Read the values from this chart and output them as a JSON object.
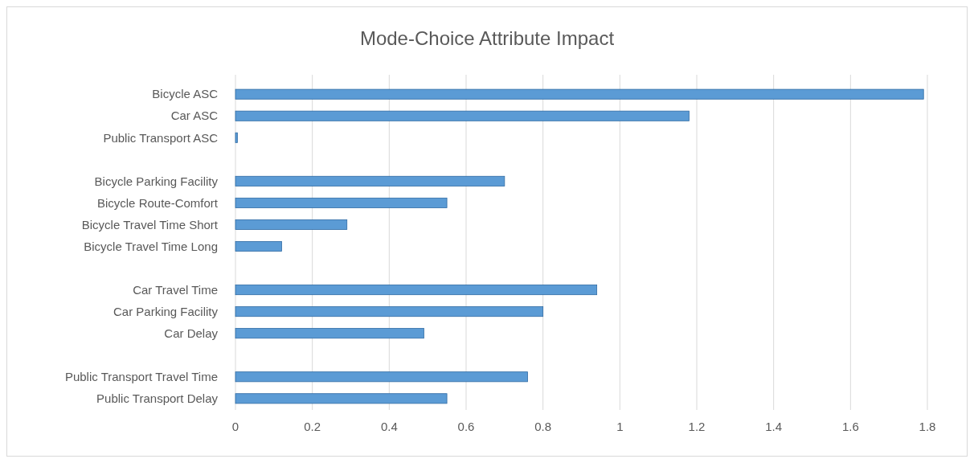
{
  "chart_data": {
    "type": "bar",
    "orientation": "horizontal",
    "title": "Mode-Choice Attribute Impact",
    "categories": [
      "Bicycle ASC",
      "Car ASC",
      "Public Transport ASC",
      null,
      "Bicycle Parking Facility",
      "Bicycle Route-Comfort",
      "Bicycle Travel Time Short",
      "Bicycle Travel Time Long",
      null,
      "Car Travel Time",
      "Car Parking Facility",
      "Car Delay",
      null,
      "Public Transport Travel Time",
      "Public Transport Delay"
    ],
    "values": [
      1.79,
      1.18,
      0.005,
      null,
      0.7,
      0.55,
      0.29,
      0.12,
      null,
      0.94,
      0.8,
      0.49,
      null,
      0.76,
      0.55
    ],
    "color": "#5b9bd5",
    "xlim": [
      0,
      1.8
    ],
    "xticks": [
      0,
      0.2,
      0.4,
      0.6,
      0.8,
      1,
      1.2,
      1.4,
      1.6,
      1.8
    ],
    "grid": "x"
  }
}
